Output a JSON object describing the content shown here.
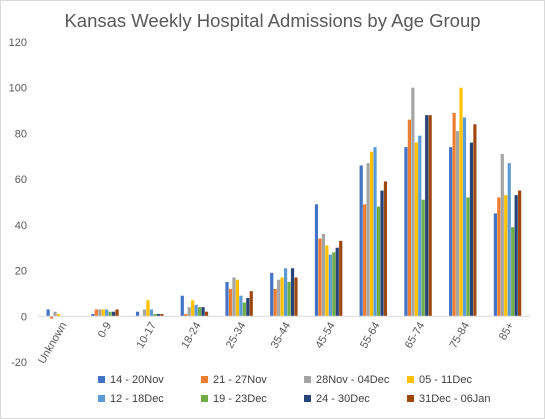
{
  "chart_data": {
    "type": "bar",
    "title": "Kansas Weekly Hospital Admissions by Age Group",
    "xlabel": "",
    "ylabel": "",
    "ylim": [
      -20,
      120
    ],
    "yticks": [
      -20,
      0,
      20,
      40,
      60,
      80,
      100,
      120
    ],
    "grid": false,
    "legend_position": "bottom",
    "categories": [
      "Unknown",
      "0-9",
      "10-17",
      "18-24",
      "25-34",
      "35-44",
      "45-54",
      "55-64",
      "65-74",
      "75-84",
      "85+"
    ],
    "series": [
      {
        "name": "14 - 20Nov",
        "color": "#4472c4",
        "values": [
          3,
          1,
          2,
          9,
          15,
          19,
          49,
          66,
          74,
          74,
          45
        ]
      },
      {
        "name": "21 - 27Nov",
        "color": "#ed7d31",
        "values": [
          -1,
          3,
          0,
          1,
          12,
          12,
          34,
          49,
          86,
          89,
          52
        ]
      },
      {
        "name": "28Nov - 04Dec",
        "color": "#a5a5a5",
        "values": [
          2,
          3,
          3,
          4,
          17,
          16,
          36,
          67,
          100,
          81,
          71
        ]
      },
      {
        "name": "05 - 11Dec",
        "color": "#ffc000",
        "values": [
          1,
          3,
          7,
          7,
          16,
          17,
          31,
          72,
          76,
          100,
          53
        ]
      },
      {
        "name": "12 - 18Dec",
        "color": "#5b9bd5",
        "values": [
          0,
          3,
          3,
          5,
          9,
          21,
          27,
          74,
          79,
          87,
          67
        ]
      },
      {
        "name": "19 - 23Dec",
        "color": "#70ad47",
        "values": [
          0,
          2,
          1,
          4,
          6,
          15,
          28,
          48,
          51,
          52,
          39
        ]
      },
      {
        "name": "24 - 30Dec",
        "color": "#264478",
        "values": [
          0,
          2,
          1,
          4,
          8,
          21,
          30,
          55,
          88,
          76,
          53
        ]
      },
      {
        "name": "31Dec - 06Jan",
        "color": "#9e480e",
        "values": [
          0,
          3,
          1,
          2,
          11,
          17,
          33,
          59,
          88,
          84,
          55
        ]
      }
    ]
  }
}
